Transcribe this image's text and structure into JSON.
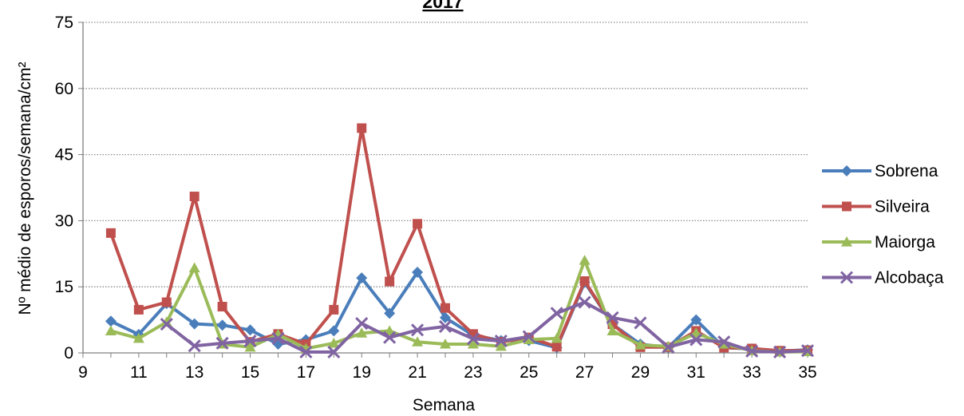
{
  "chart_data": {
    "type": "line",
    "title": "2017",
    "xlabel": "Semana",
    "ylabel": "Nº  médio de esporos/semana/cm²",
    "xlim": [
      9,
      35
    ],
    "ylim": [
      0,
      75
    ],
    "x_ticks": [
      "9",
      "11",
      "13",
      "15",
      "17",
      "19",
      "21",
      "23",
      "25",
      "27",
      "29",
      "31",
      "33",
      "35"
    ],
    "y_ticks": [
      "0",
      "15",
      "30",
      "45",
      "60",
      "75"
    ],
    "grid": "horizontal dotted",
    "legend_position": "right",
    "x": [
      10,
      11,
      12,
      13,
      14,
      15,
      16,
      17,
      18,
      19,
      20,
      21,
      22,
      23,
      24,
      25,
      26,
      27,
      28,
      29,
      30,
      31,
      32,
      33,
      34,
      35
    ],
    "series": [
      {
        "name": "Sobrena",
        "color": "#4a7ebb",
        "marker": "diamond",
        "values": [
          7.2,
          4.2,
          11.2,
          6.6,
          6.3,
          5.2,
          2.0,
          3.0,
          5.0,
          17.0,
          9.0,
          18.3,
          8.0,
          4.0,
          2.8,
          2.8,
          1.2,
          16.0,
          6.5,
          2.0,
          1.2,
          7.5,
          1.2,
          0.9,
          0.4,
          0.7
        ]
      },
      {
        "name": "Silveira",
        "color": "#c0504d",
        "marker": "square",
        "values": [
          27.2,
          9.8,
          11.5,
          35.5,
          10.5,
          2.5,
          4.3,
          2.0,
          9.8,
          51.0,
          16.2,
          29.3,
          10.2,
          4.3,
          2.5,
          3.5,
          1.4,
          16.3,
          6.5,
          1.3,
          1.3,
          5.0,
          1.2,
          1.0,
          0.5,
          0.6
        ]
      },
      {
        "name": "Maiorga",
        "color": "#9bbb59",
        "marker": "triangle",
        "values": [
          5.0,
          3.3,
          7.0,
          19.3,
          2.0,
          1.3,
          4.2,
          1.0,
          2.2,
          4.5,
          5.0,
          2.5,
          2.0,
          2.0,
          1.5,
          3.0,
          3.3,
          21.0,
          5.0,
          1.8,
          1.5,
          4.5,
          2.0,
          0.5,
          0.2,
          0.3
        ]
      },
      {
        "name": "Alcobaça",
        "color": "#8064a2",
        "marker": "x",
        "values": [
          null,
          null,
          6.5,
          1.6,
          2.2,
          2.7,
          3.3,
          0.2,
          0.2,
          6.7,
          3.5,
          5.2,
          6.0,
          3.2,
          2.7,
          3.7,
          9.0,
          11.5,
          8.0,
          6.8,
          1.3,
          3.0,
          2.5,
          0.4,
          0.2,
          0.5
        ]
      }
    ]
  }
}
